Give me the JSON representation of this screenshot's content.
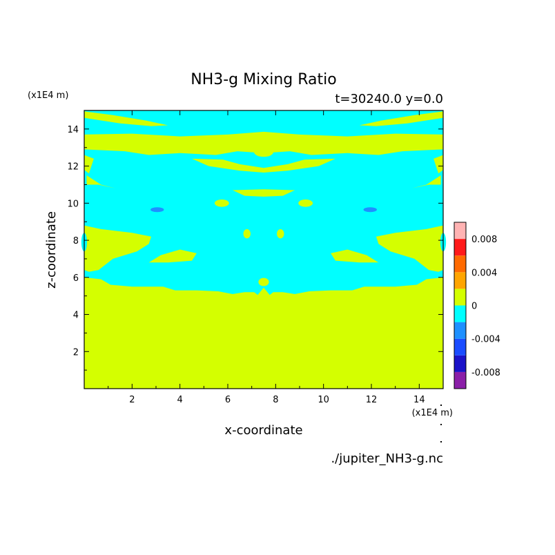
{
  "chart_data": {
    "type": "heatmap",
    "title": "NH3-g Mixing Ratio",
    "subtitle": "t=30240.0 y=0.0",
    "xlabel": "x-coordinate",
    "ylabel": "z-coordinate",
    "x_unit": "(x1E4 m)",
    "y_unit": "(x1E4 m)",
    "xlim": [
      0,
      15
    ],
    "ylim": [
      0,
      15
    ],
    "x_ticks": [
      2,
      4,
      6,
      8,
      10,
      12,
      14
    ],
    "y_ticks": [
      2,
      4,
      6,
      8,
      10,
      12,
      14
    ],
    "colorbar": {
      "levels": [
        -0.01,
        -0.008,
        -0.006,
        -0.004,
        -0.002,
        0,
        0.002,
        0.004,
        0.006,
        0.008,
        0.01
      ],
      "colors": [
        "#8b1fa8",
        "#1a12c8",
        "#1a4cff",
        "#1e90ff",
        "#00ffff",
        "#d4ff00",
        "#ffa500",
        "#ff6a00",
        "#ff1a1a",
        "#ffb3b3"
      ],
      "tick_labels": [
        "0.008",
        "0.004",
        "0",
        "-0.004",
        "-0.008"
      ],
      "tick_values": [
        0.008,
        0.004,
        0,
        -0.004,
        -0.008
      ]
    },
    "background_level_color": "#d4ff00",
    "region_color": "#00ffff",
    "minimum_spot_color": "#1e90ff",
    "source_file": "./jupiter_NH3-g.nc"
  }
}
